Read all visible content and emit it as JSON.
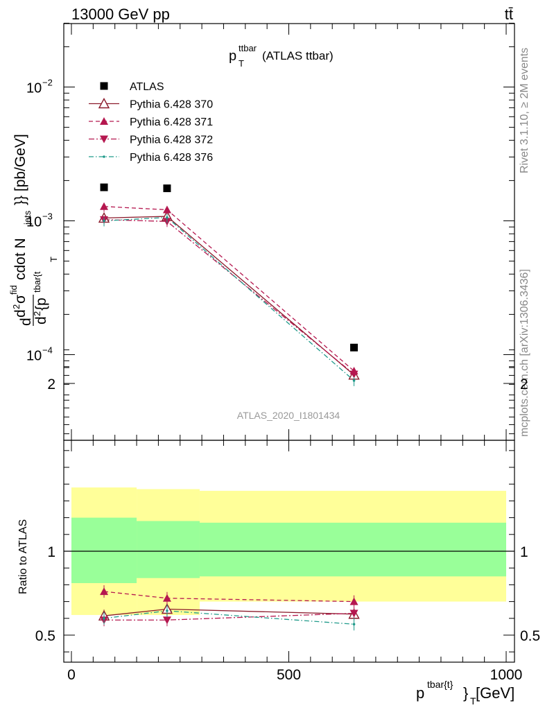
{
  "header": {
    "left": "13000 GeV pp",
    "right": "tt̄"
  },
  "main_title": {
    "base": "p",
    "sup": "ttbar",
    "sub": "T",
    "rest": " (ATLAS ttbar)"
  },
  "side_labels": {
    "rivet": "Rivet 3.1.10, ≥ 2M events",
    "mcplots": "mcplots.cern.ch [arXiv:1306.3436]"
  },
  "analysis_id": "ATLAS_2020_I1801434",
  "y_label_top": "d d²σ^{fid} cdot N_{jets}}} [pb/GeV] / d²{p^{tbar{t}}_{T}",
  "y_label_top_parts": {
    "d1": "d",
    "d2": "d",
    "sup2": "2",
    "sigma": "σ",
    "fid": "fid",
    "cdot": " cdot N",
    "jets": "jets",
    "unit": "}} [pb/GeV]",
    "den_d": "d",
    "den_2": "2",
    "den_p": "{p",
    "den_sup": "tbar{t",
    "den_sub": "T"
  },
  "y_label_bottom": "Ratio to ATLAS",
  "x_label": {
    "base": "p",
    "sup": "tbar{t}",
    "sub": "}",
    "subT": "T",
    "unit": " [GeV]"
  },
  "colors": {
    "data": "#000000",
    "p370": "#8b1a2b",
    "p371": "#b5174f",
    "p372": "#b5174f",
    "p376": "#1f9a8a",
    "band_inner": "#99ff99",
    "band_outer": "#ffff99"
  },
  "chart_data": [
    {
      "type": "scatter",
      "panel": "main",
      "yscale": "log",
      "xlim": [
        -20,
        1000
      ],
      "ylim": [
        2.5e-05,
        0.03
      ],
      "y_ticks_major": [
        {
          "value": 0.0001,
          "base": "10",
          "exp": "−4"
        },
        {
          "value": 0.001,
          "base": "10",
          "exp": "−3"
        },
        {
          "value": 0.01,
          "base": "10",
          "exp": "−2"
        }
      ],
      "series": [
        {
          "name": "ATLAS",
          "key": "data",
          "style": "data",
          "x": [
            75,
            220,
            650
          ],
          "y": [
            0.00178,
            0.00175,
            0.000113
          ]
        },
        {
          "name": "Pythia 6.428 370",
          "key": "p370",
          "style": "solid-open-triangle",
          "x": [
            75,
            220,
            650
          ],
          "y": [
            0.00105,
            0.00108,
            7.05e-05
          ]
        },
        {
          "name": "Pythia 6.428 371",
          "key": "p371",
          "style": "dashed-triangle",
          "x": [
            75,
            220,
            650
          ],
          "y": [
            0.00128,
            0.00121,
            7.55e-05
          ]
        },
        {
          "name": "Pythia 6.428 372",
          "key": "p372",
          "style": "dashdot-down-triangle",
          "x": [
            75,
            220,
            650
          ],
          "y": [
            0.00102,
            0.00099,
            7.15e-05
          ]
        },
        {
          "name": "Pythia 6.428 376",
          "key": "p376",
          "style": "dashdot-dot",
          "x": [
            75,
            220,
            650
          ],
          "y": [
            0.001,
            0.00106,
            6.4e-05
          ]
        }
      ],
      "legend_placement": "top-left"
    },
    {
      "type": "scatter",
      "panel": "ratio",
      "xlim": [
        -20,
        1000
      ],
      "ylim": [
        0.35,
        2.25
      ],
      "y_ticks_major": [
        0.5,
        1,
        2
      ],
      "x_ticks_major": [
        0,
        500,
        1000
      ],
      "bands": [
        {
          "x0": 0,
          "x1": 150,
          "outer": [
            0.62,
            1.38
          ],
          "inner": [
            0.81,
            1.2
          ]
        },
        {
          "x0": 150,
          "x1": 295,
          "outer": [
            0.62,
            1.37
          ],
          "inner": [
            0.84,
            1.18
          ]
        },
        {
          "x0": 295,
          "x1": 1000,
          "outer": [
            0.7,
            1.36
          ],
          "inner": [
            0.85,
            1.17
          ]
        }
      ],
      "series": [
        {
          "name": "Pythia 6.428 370",
          "key": "p370",
          "style": "solid-open-triangle",
          "x": [
            75,
            220,
            650
          ],
          "y": [
            0.615,
            0.655,
            0.625
          ]
        },
        {
          "name": "Pythia 6.428 371",
          "key": "p371",
          "style": "dashed-triangle",
          "x": [
            75,
            220,
            650
          ],
          "y": [
            0.76,
            0.72,
            0.7
          ]
        },
        {
          "name": "Pythia 6.428 372",
          "key": "p372",
          "style": "dashdot-down-triangle",
          "x": [
            75,
            220,
            650
          ],
          "y": [
            0.59,
            0.59,
            0.63
          ]
        },
        {
          "name": "Pythia 6.428 376",
          "key": "p376",
          "style": "dashdot-dot",
          "x": [
            75,
            220,
            650
          ],
          "y": [
            0.6,
            0.645,
            0.565
          ]
        }
      ]
    }
  ]
}
